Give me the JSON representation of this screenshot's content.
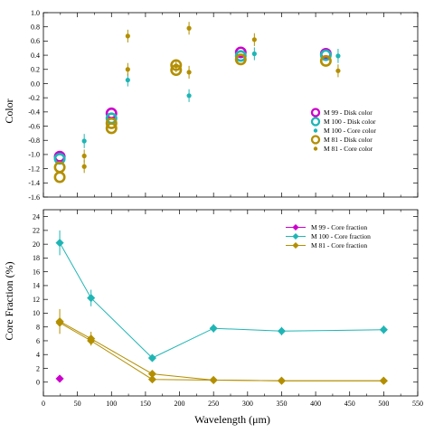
{
  "colors": {
    "m99": "#cc00cc",
    "m100": "#1fb5b5",
    "m81": "#b38f00"
  },
  "chart_data": [
    {
      "type": "scatter",
      "ylabel": "Color",
      "xlabel": "",
      "xlim": [
        0,
        550
      ],
      "ylim": [
        -1.6,
        1.0
      ],
      "yticks": [
        -1.6,
        -1.4,
        -1.2,
        -1.0,
        -0.8,
        -0.6,
        -0.4,
        -0.2,
        0.0,
        0.2,
        0.4,
        0.6,
        0.8,
        1.0
      ],
      "ytick_labels": [
        "-1.6",
        "-1.4",
        "-1.2",
        "-1.0",
        "-0.8",
        "-0.6",
        "-0.4",
        "-0.2",
        "0.0",
        "0.2",
        "0.4",
        "0.6",
        "0.8",
        "1.0"
      ],
      "legend_position": "right",
      "series": [
        {
          "name": "M 99 - Disk color",
          "color_key": "m99",
          "marker": "open-circle",
          "points": [
            [
              24,
              -1.03,
              0.07
            ],
            [
              100,
              -0.42,
              0.05
            ],
            [
              290,
              0.44,
              0.05
            ],
            [
              415,
              0.42,
              0.06
            ]
          ]
        },
        {
          "name": "M 100 - Disk color",
          "color_key": "m100",
          "marker": "open-circle",
          "points": [
            [
              24,
              -1.06,
              0.07
            ],
            [
              100,
              -0.49,
              0.05
            ],
            [
              290,
              0.39,
              0.05
            ],
            [
              415,
              0.4,
              0.06
            ]
          ]
        },
        {
          "name": "M 100 - Core color",
          "color_key": "m100",
          "marker": "dot",
          "points": [
            [
              60,
              -0.81,
              0.1
            ],
            [
              124,
              0.05,
              0.09
            ],
            [
              214,
              -0.17,
              0.09
            ],
            [
              310,
              0.42,
              0.09
            ],
            [
              433,
              0.39,
              0.1
            ]
          ]
        },
        {
          "name": "M 81 - Disk color",
          "color_key": "m81",
          "marker": "open-circle",
          "points": [
            [
              24,
              -1.18,
              0.06
            ],
            [
              24,
              -1.32,
              0.06
            ],
            [
              100,
              -0.56,
              0.05
            ],
            [
              100,
              -0.63,
              0.05
            ],
            [
              195,
              0.26,
              0.05
            ],
            [
              195,
              0.19,
              0.05
            ],
            [
              290,
              0.34,
              0.05
            ],
            [
              415,
              0.32,
              0.06
            ]
          ]
        },
        {
          "name": "M 81 - Core color",
          "color_key": "m81",
          "marker": "dot",
          "points": [
            [
              60,
              -1.02,
              0.09
            ],
            [
              60,
              -1.17,
              0.09
            ],
            [
              124,
              0.67,
              0.09
            ],
            [
              124,
              0.2,
              0.09
            ],
            [
              195,
              0.25,
              0.09
            ],
            [
              214,
              0.78,
              0.09
            ],
            [
              214,
              0.16,
              0.09
            ],
            [
              310,
              0.62,
              0.09
            ],
            [
              433,
              0.18,
              0.09
            ]
          ]
        }
      ]
    },
    {
      "type": "line",
      "ylabel": "Core Fraction (%)",
      "xlabel": "Wavelength (μm)",
      "xlim": [
        0,
        550
      ],
      "ylim": [
        -2,
        25
      ],
      "xticks": [
        0,
        50,
        100,
        150,
        200,
        250,
        300,
        350,
        400,
        450,
        500,
        550
      ],
      "xtick_labels": [
        "0",
        "50",
        "100",
        "150",
        "200",
        "250",
        "300",
        "350",
        "400",
        "450",
        "500",
        "550"
      ],
      "yticks": [
        0,
        2,
        4,
        6,
        8,
        10,
        12,
        14,
        16,
        18,
        20,
        22,
        24
      ],
      "ytick_labels": [
        "0",
        "2",
        "4",
        "6",
        "8",
        "10",
        "12",
        "14",
        "16",
        "18",
        "20",
        "22",
        "24"
      ],
      "legend_position": "top-right",
      "series": [
        {
          "name": "M 99 - Core fraction",
          "color_key": "m99",
          "points": [
            [
              24,
              0.5,
              0
            ]
          ]
        },
        {
          "name": "M 100 - Core fraction",
          "color_key": "m100",
          "points": [
            [
              24,
              20.2,
              1.8
            ],
            [
              70,
              12.2,
              1.2
            ],
            [
              160,
              3.5,
              0.4
            ],
            [
              250,
              7.8,
              0.6
            ],
            [
              350,
              7.4,
              0.6
            ],
            [
              500,
              7.6,
              0.6
            ]
          ]
        },
        {
          "name": "M 81 - Core fraction",
          "color_key": "m81",
          "points": [
            [
              24,
              8.8,
              1.8
            ],
            [
              70,
              6.3,
              1.0
            ],
            [
              160,
              1.2,
              0.3
            ],
            [
              250,
              0.3,
              0.1
            ],
            [
              350,
              0.2,
              0.1
            ],
            [
              500,
              0.2,
              0.1
            ]
          ]
        },
        {
          "name": "",
          "color_key": "m81",
          "points": [
            [
              24,
              8.6,
              0
            ],
            [
              70,
              6.0,
              0
            ],
            [
              160,
              0.4,
              0
            ],
            [
              250,
              0.3,
              0
            ],
            [
              350,
              0.2,
              0
            ],
            [
              500,
              0.2,
              0
            ]
          ]
        }
      ]
    }
  ]
}
